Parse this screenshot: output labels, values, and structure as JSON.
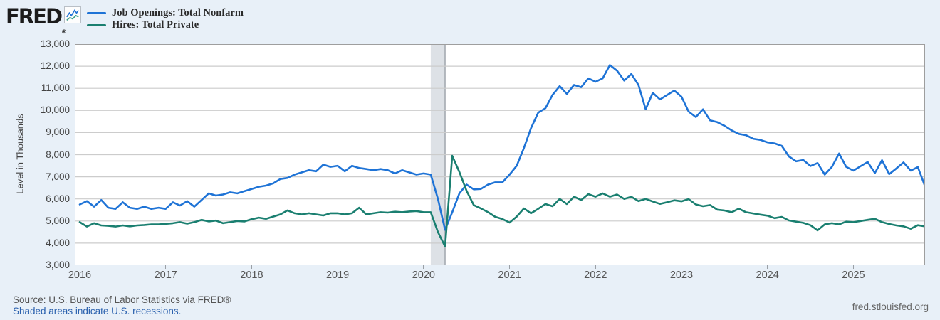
{
  "header": {
    "logo_text": "FRED",
    "logo_registered": "®",
    "legend": [
      {
        "label": "Job Openings: Total Nonfarm",
        "color": "#1e73d6"
      },
      {
        "label": "Hires: Total Private",
        "color": "#1a7f70"
      }
    ]
  },
  "footer": {
    "source_text": "Source: U.S. Bureau of Labor Statistics via FRED®",
    "recession_note": "Shaded areas indicate U.S. recessions.",
    "site_link": "fred.stlouisfed.org"
  },
  "chart_data": {
    "type": "line",
    "ylabel": "Level in Thousands",
    "frequency": "monthly",
    "x_start": "2016-01",
    "x_end": "2025-11",
    "ylim": [
      3000,
      13000
    ],
    "ytick_step": 1000,
    "yticks": [
      "13,000",
      "12,000",
      "11,000",
      "10,000",
      "9,000",
      "8,000",
      "7,000",
      "6,000",
      "5,000",
      "4,000",
      "3,000"
    ],
    "xticks": [
      "2016",
      "2017",
      "2018",
      "2019",
      "2020",
      "2021",
      "2022",
      "2023",
      "2024",
      "2025"
    ],
    "grid": "horizontal",
    "legend_position": "top-left",
    "recession_band": {
      "label": "U.S. recession",
      "start_index": 49,
      "end_index": 51,
      "fill": "#dde1e6",
      "edge": "#9aa1a8"
    },
    "colors": {
      "gridline": "#cccccc",
      "plot_border": "#9e9e9e"
    },
    "series": [
      {
        "name": "Job Openings: Total Nonfarm",
        "color": "#1e73d6",
        "values": [
          5750,
          5900,
          5650,
          5950,
          5600,
          5550,
          5850,
          5600,
          5550,
          5650,
          5550,
          5600,
          5550,
          5850,
          5700,
          5900,
          5650,
          5950,
          6250,
          6150,
          6200,
          6300,
          6250,
          6350,
          6450,
          6550,
          6600,
          6700,
          6900,
          6950,
          7100,
          7200,
          7300,
          7250,
          7550,
          7450,
          7500,
          7250,
          7500,
          7400,
          7350,
          7300,
          7350,
          7300,
          7150,
          7300,
          7200,
          7100,
          7150,
          7100,
          6000,
          4600,
          5400,
          6250,
          6650,
          6430,
          6450,
          6650,
          6750,
          6750,
          7100,
          7500,
          8300,
          9200,
          9900,
          10100,
          10700,
          11100,
          10750,
          11150,
          11050,
          11450,
          11300,
          11450,
          12050,
          11800,
          11350,
          11650,
          11150,
          10050,
          10800,
          10500,
          10700,
          10900,
          10620,
          9950,
          9700,
          10050,
          9550,
          9470,
          9310,
          9100,
          8940,
          8880,
          8720,
          8670,
          8560,
          8510,
          8400,
          7920,
          7700,
          7760,
          7490,
          7620,
          7100,
          7450,
          8050,
          7450,
          7280,
          7480,
          7670,
          7170,
          7750,
          7120,
          7380,
          7650,
          7280,
          7440,
          6570
        ]
      },
      {
        "name": "Hires: Total Private",
        "color": "#1a7f70",
        "values": [
          4950,
          4750,
          4900,
          4800,
          4780,
          4750,
          4800,
          4760,
          4800,
          4820,
          4850,
          4850,
          4870,
          4900,
          4950,
          4880,
          4950,
          5050,
          4980,
          5020,
          4900,
          4950,
          5000,
          4980,
          5080,
          5150,
          5100,
          5200,
          5300,
          5480,
          5350,
          5300,
          5350,
          5300,
          5250,
          5350,
          5350,
          5300,
          5350,
          5600,
          5300,
          5350,
          5400,
          5380,
          5420,
          5400,
          5430,
          5450,
          5400,
          5400,
          4500,
          3850,
          7950,
          7220,
          6365,
          5720,
          5570,
          5400,
          5190,
          5090,
          4930,
          5200,
          5570,
          5350,
          5550,
          5770,
          5670,
          6000,
          5770,
          6100,
          5950,
          6215,
          6100,
          6250,
          6100,
          6200,
          6000,
          6095,
          5900,
          6000,
          5880,
          5775,
          5850,
          5935,
          5890,
          5990,
          5750,
          5670,
          5720,
          5510,
          5475,
          5400,
          5560,
          5400,
          5345,
          5290,
          5240,
          5130,
          5185,
          5025,
          4970,
          4915,
          4810,
          4580,
          4850,
          4900,
          4850,
          4970,
          4950,
          5000,
          5050,
          5100,
          4950,
          4865,
          4800,
          4760,
          4650,
          4810,
          4760
        ]
      }
    ]
  }
}
